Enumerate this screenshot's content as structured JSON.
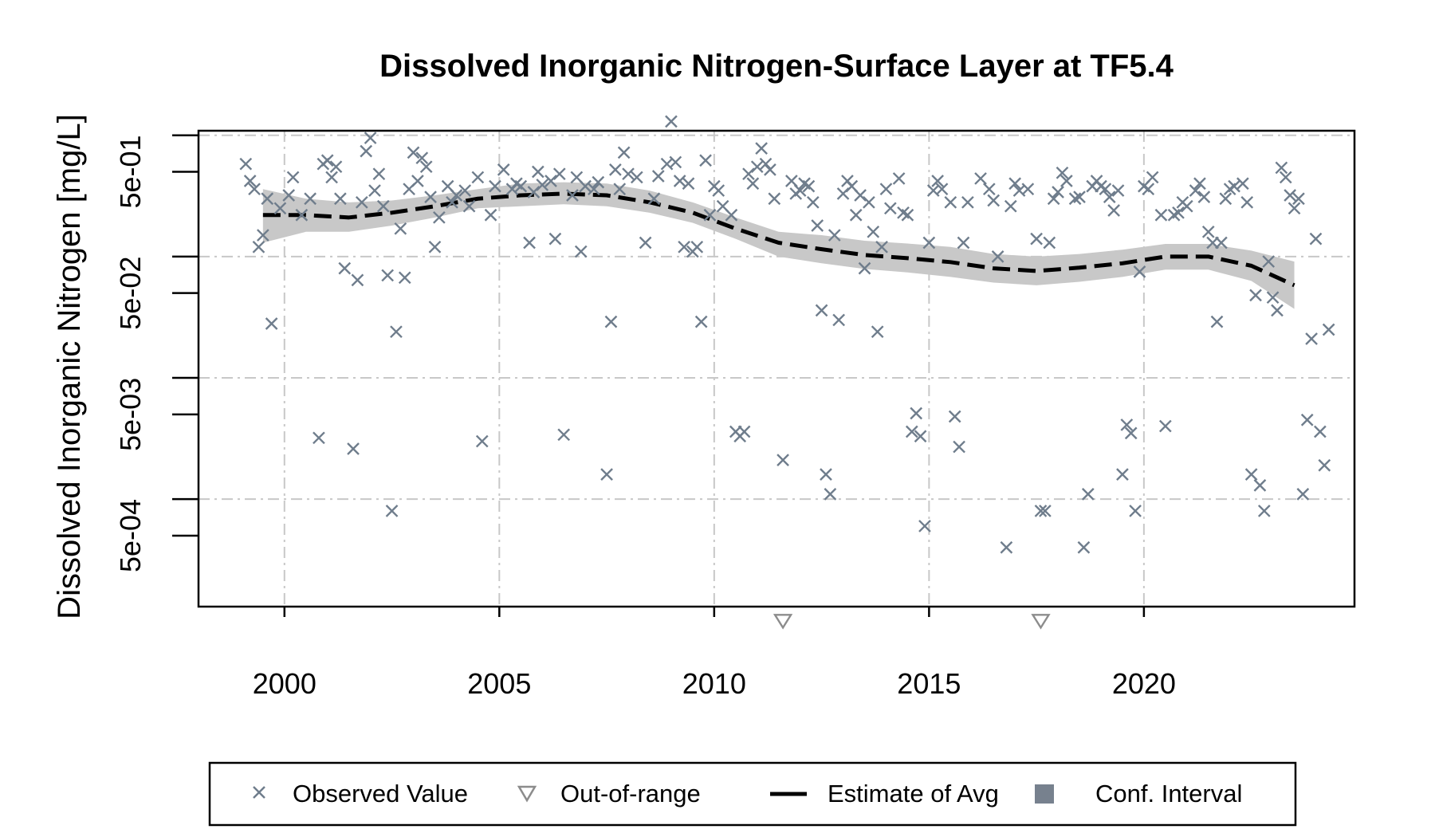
{
  "chart_data": {
    "type": "scatter",
    "title": "Dissolved Inorganic Nitrogen-Surface Layer at TF5.4",
    "xlabel": "",
    "ylabel": "Dissolved Inorganic Nitrogen [mg/L]",
    "y_scale": "log10",
    "xlim": [
      1998,
      2024.9
    ],
    "ylim": [
      0.00013,
      1.09
    ],
    "x_ticks": [
      2000,
      2005,
      2010,
      2015,
      2020
    ],
    "x_tick_labels": [
      "2000",
      "2005",
      "2010",
      "2015",
      "2020"
    ],
    "y_ticks": [
      0.0005,
      0.005,
      0.05,
      0.5
    ],
    "y_tick_labels": [
      "5e-04",
      "5e-03",
      "5e-02",
      "5e-01"
    ],
    "grid": true,
    "legend_position": "bottom",
    "legend": [
      {
        "label": "Observed Value",
        "symbol": "cross"
      },
      {
        "label": "Out-of-range",
        "symbol": "triangle-down"
      },
      {
        "label": "Estimate of Avg",
        "symbol": "dashed-line"
      },
      {
        "label": "Conf. Interval",
        "symbol": "square"
      }
    ],
    "colors": {
      "observed": "#6f7d8c",
      "out_of_range": "#8c8c8c",
      "estimate": "#000000",
      "conf_band": "#c8c8c8",
      "conf_legend": "#77818e",
      "grid": "#c8c8c8"
    },
    "series": [
      {
        "name": "Observed Value",
        "type": "scatter",
        "points": [
          [
            1999.1,
            0.58
          ],
          [
            1999.2,
            0.42
          ],
          [
            1999.3,
            0.36
          ],
          [
            1999.4,
            0.12
          ],
          [
            1999.5,
            0.15
          ],
          [
            1999.6,
            0.3
          ],
          [
            1999.7,
            0.028
          ],
          [
            1999.9,
            0.25
          ],
          [
            2000.1,
            0.32
          ],
          [
            2000.2,
            0.45
          ],
          [
            2000.4,
            0.22
          ],
          [
            2000.6,
            0.3
          ],
          [
            2000.8,
            0.0032
          ],
          [
            2000.9,
            0.58
          ],
          [
            2001.0,
            0.62
          ],
          [
            2001.1,
            0.45
          ],
          [
            2001.2,
            0.55
          ],
          [
            2001.3,
            0.3
          ],
          [
            2001.4,
            0.08
          ],
          [
            2001.6,
            0.0026
          ],
          [
            2001.7,
            0.064
          ],
          [
            2001.8,
            0.28
          ],
          [
            2001.9,
            0.74
          ],
          [
            2002.0,
            0.95
          ],
          [
            2002.1,
            0.35
          ],
          [
            2002.2,
            0.48
          ],
          [
            2002.3,
            0.26
          ],
          [
            2002.4,
            0.07
          ],
          [
            2002.5,
            0.0008
          ],
          [
            2002.6,
            0.024
          ],
          [
            2002.7,
            0.17
          ],
          [
            2002.8,
            0.067
          ],
          [
            2002.9,
            0.36
          ],
          [
            2003.0,
            0.72
          ],
          [
            2003.1,
            0.42
          ],
          [
            2003.2,
            0.65
          ],
          [
            2003.3,
            0.55
          ],
          [
            2003.4,
            0.31
          ],
          [
            2003.5,
            0.12
          ],
          [
            2003.6,
            0.21
          ],
          [
            2003.8,
            0.38
          ],
          [
            2003.9,
            0.28
          ],
          [
            2004.0,
            0.32
          ],
          [
            2004.2,
            0.35
          ],
          [
            2004.3,
            0.26
          ],
          [
            2004.5,
            0.45
          ],
          [
            2004.6,
            0.003
          ],
          [
            2004.8,
            0.22
          ],
          [
            2004.9,
            0.38
          ],
          [
            2005.1,
            0.52
          ],
          [
            2005.3,
            0.36
          ],
          [
            2005.4,
            0.4
          ],
          [
            2005.5,
            0.38
          ],
          [
            2005.7,
            0.13
          ],
          [
            2005.8,
            0.34
          ],
          [
            2005.9,
            0.5
          ],
          [
            2006.0,
            0.39
          ],
          [
            2006.2,
            0.42
          ],
          [
            2006.3,
            0.14
          ],
          [
            2006.4,
            0.48
          ],
          [
            2006.5,
            0.0034
          ],
          [
            2006.7,
            0.32
          ],
          [
            2006.8,
            0.45
          ],
          [
            2006.9,
            0.11
          ],
          [
            2007.0,
            0.38
          ],
          [
            2007.2,
            0.36
          ],
          [
            2007.3,
            0.41
          ],
          [
            2007.5,
            0.0016
          ],
          [
            2007.6,
            0.029
          ],
          [
            2007.7,
            0.52
          ],
          [
            2007.8,
            0.36
          ],
          [
            2007.9,
            0.72
          ],
          [
            2008.0,
            0.48
          ],
          [
            2008.2,
            0.45
          ],
          [
            2008.4,
            0.13
          ],
          [
            2008.6,
            0.3
          ],
          [
            2008.7,
            0.46
          ],
          [
            2008.9,
            0.58
          ],
          [
            2009.0,
            1.3
          ],
          [
            2009.1,
            0.6
          ],
          [
            2009.2,
            0.42
          ],
          [
            2009.3,
            0.12
          ],
          [
            2009.4,
            0.4
          ],
          [
            2009.5,
            0.11
          ],
          [
            2009.6,
            0.12
          ],
          [
            2009.7,
            0.029
          ],
          [
            2009.8,
            0.62
          ],
          [
            2009.9,
            0.22
          ],
          [
            2010.0,
            0.38
          ],
          [
            2010.1,
            0.35
          ],
          [
            2010.2,
            0.26
          ],
          [
            2010.4,
            0.22
          ],
          [
            2010.5,
            0.0036
          ],
          [
            2010.6,
            0.0033
          ],
          [
            2010.7,
            0.0036
          ],
          [
            2010.8,
            0.48
          ],
          [
            2010.9,
            0.4
          ],
          [
            2011.0,
            0.55
          ],
          [
            2011.1,
            0.78
          ],
          [
            2011.2,
            0.58
          ],
          [
            2011.3,
            0.52
          ],
          [
            2011.4,
            0.3
          ],
          [
            2011.6,
            0.0021
          ],
          [
            2011.8,
            0.42
          ],
          [
            2011.9,
            0.33
          ],
          [
            2012.0,
            0.35
          ],
          [
            2012.1,
            0.4
          ],
          [
            2012.2,
            0.38
          ],
          [
            2012.3,
            0.28
          ],
          [
            2012.4,
            0.18
          ],
          [
            2012.5,
            0.036
          ],
          [
            2012.6,
            0.0016
          ],
          [
            2012.7,
            0.0011
          ],
          [
            2012.8,
            0.15
          ],
          [
            2012.9,
            0.03
          ],
          [
            2013.0,
            0.33
          ],
          [
            2013.1,
            0.42
          ],
          [
            2013.2,
            0.38
          ],
          [
            2013.3,
            0.22
          ],
          [
            2013.4,
            0.32
          ],
          [
            2013.5,
            0.08
          ],
          [
            2013.6,
            0.28
          ],
          [
            2013.7,
            0.16
          ],
          [
            2013.8,
            0.024
          ],
          [
            2013.9,
            0.12
          ],
          [
            2014.0,
            0.36
          ],
          [
            2014.1,
            0.25
          ],
          [
            2014.3,
            0.44
          ],
          [
            2014.4,
            0.23
          ],
          [
            2014.5,
            0.22
          ],
          [
            2014.6,
            0.0036
          ],
          [
            2014.7,
            0.0051
          ],
          [
            2014.8,
            0.0033
          ],
          [
            2014.9,
            0.0006
          ],
          [
            2015.0,
            0.13
          ],
          [
            2015.1,
            0.35
          ],
          [
            2015.2,
            0.42
          ],
          [
            2015.3,
            0.36
          ],
          [
            2015.5,
            0.28
          ],
          [
            2015.6,
            0.0048
          ],
          [
            2015.7,
            0.0027
          ],
          [
            2015.8,
            0.13
          ],
          [
            2015.9,
            0.28
          ],
          [
            2016.2,
            0.44
          ],
          [
            2016.4,
            0.36
          ],
          [
            2016.5,
            0.29
          ],
          [
            2016.6,
            0.1
          ],
          [
            2016.8,
            0.0004
          ],
          [
            2016.9,
            0.26
          ],
          [
            2017.0,
            0.4
          ],
          [
            2017.1,
            0.35
          ],
          [
            2017.3,
            0.36
          ],
          [
            2017.5,
            0.14
          ],
          [
            2017.6,
            0.0008
          ],
          [
            2017.7,
            0.0008
          ],
          [
            2017.8,
            0.13
          ],
          [
            2017.9,
            0.3
          ],
          [
            2018.0,
            0.34
          ],
          [
            2018.1,
            0.49
          ],
          [
            2018.2,
            0.42
          ],
          [
            2018.4,
            0.3
          ],
          [
            2018.5,
            0.31
          ],
          [
            2018.6,
            0.0004
          ],
          [
            2018.7,
            0.0011
          ],
          [
            2018.8,
            0.38
          ],
          [
            2018.9,
            0.42
          ],
          [
            2019.0,
            0.38
          ],
          [
            2019.1,
            0.36
          ],
          [
            2019.2,
            0.31
          ],
          [
            2019.3,
            0.24
          ],
          [
            2019.4,
            0.35
          ],
          [
            2019.5,
            0.0016
          ],
          [
            2019.6,
            0.0041
          ],
          [
            2019.7,
            0.0035
          ],
          [
            2019.8,
            0.0008
          ],
          [
            2019.9,
            0.075
          ],
          [
            2020.0,
            0.38
          ],
          [
            2020.1,
            0.36
          ],
          [
            2020.2,
            0.45
          ],
          [
            2020.4,
            0.22
          ],
          [
            2020.5,
            0.004
          ],
          [
            2020.7,
            0.22
          ],
          [
            2020.8,
            0.23
          ],
          [
            2020.9,
            0.28
          ],
          [
            2021.0,
            0.26
          ],
          [
            2021.2,
            0.35
          ],
          [
            2021.3,
            0.4
          ],
          [
            2021.4,
            0.31
          ],
          [
            2021.5,
            0.16
          ],
          [
            2021.6,
            0.13
          ],
          [
            2021.7,
            0.029
          ],
          [
            2021.8,
            0.13
          ],
          [
            2021.9,
            0.3
          ],
          [
            2022.0,
            0.36
          ],
          [
            2022.1,
            0.38
          ],
          [
            2022.3,
            0.4
          ],
          [
            2022.4,
            0.28
          ],
          [
            2022.5,
            0.0016
          ],
          [
            2022.6,
            0.048
          ],
          [
            2022.7,
            0.0013
          ],
          [
            2022.8,
            0.0008
          ],
          [
            2022.9,
            0.091
          ],
          [
            2023.0,
            0.046
          ],
          [
            2023.1,
            0.036
          ],
          [
            2023.2,
            0.54
          ],
          [
            2023.3,
            0.45
          ],
          [
            2023.4,
            0.32
          ],
          [
            2023.5,
            0.25
          ],
          [
            2023.6,
            0.3
          ],
          [
            2023.7,
            0.0011
          ],
          [
            2023.8,
            0.0045
          ],
          [
            2023.9,
            0.021
          ],
          [
            2024.0,
            0.14
          ],
          [
            2024.1,
            0.0036
          ],
          [
            2024.2,
            0.0019
          ],
          [
            2024.3,
            0.025
          ]
        ]
      },
      {
        "name": "Out-of-range",
        "type": "scatter",
        "points": [
          [
            2011.6,
            0.0001
          ],
          [
            2017.6,
            0.0001
          ]
        ]
      },
      {
        "name": "Estimate of Avg",
        "type": "line",
        "x": [
          1999.5,
          2000.5,
          2001.5,
          2002.5,
          2003.5,
          2004.5,
          2005.5,
          2006.5,
          2007.5,
          2008.5,
          2009.5,
          2010.5,
          2011.5,
          2012.5,
          2013.5,
          2014.5,
          2015.5,
          2016.5,
          2017.5,
          2018.5,
          2019.5,
          2020.5,
          2021.5,
          2022.5,
          2023.5
        ],
        "y": [
          0.22,
          0.22,
          0.21,
          0.23,
          0.26,
          0.3,
          0.32,
          0.33,
          0.32,
          0.28,
          0.23,
          0.17,
          0.13,
          0.115,
          0.103,
          0.097,
          0.09,
          0.08,
          0.076,
          0.081,
          0.088,
          0.1,
          0.1,
          0.084,
          0.058
        ]
      },
      {
        "name": "Conf. Interval",
        "type": "band",
        "x": [
          1999.5,
          2000.5,
          2001.5,
          2002.5,
          2003.5,
          2004.5,
          2005.5,
          2006.5,
          2007.5,
          2008.5,
          2009.5,
          2010.5,
          2011.5,
          2012.5,
          2013.5,
          2014.5,
          2015.5,
          2016.5,
          2017.5,
          2018.5,
          2019.5,
          2020.5,
          2021.5,
          2022.5,
          2023.5
        ],
        "lower": [
          0.13,
          0.16,
          0.16,
          0.18,
          0.21,
          0.25,
          0.26,
          0.27,
          0.26,
          0.23,
          0.19,
          0.14,
          0.1,
          0.088,
          0.079,
          0.074,
          0.068,
          0.061,
          0.058,
          0.062,
          0.068,
          0.078,
          0.078,
          0.063,
          0.037
        ],
        "upper": [
          0.36,
          0.3,
          0.28,
          0.29,
          0.32,
          0.36,
          0.4,
          0.41,
          0.4,
          0.35,
          0.28,
          0.21,
          0.16,
          0.15,
          0.135,
          0.128,
          0.12,
          0.105,
          0.1,
          0.105,
          0.114,
          0.127,
          0.127,
          0.112,
          0.091
        ]
      }
    ]
  }
}
